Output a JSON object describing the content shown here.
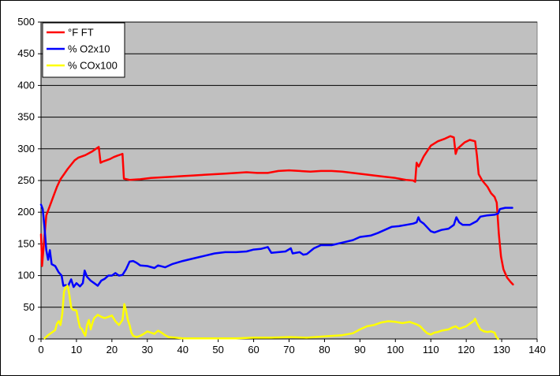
{
  "chart_data": {
    "type": "line",
    "title": "",
    "xlabel": "",
    "ylabel": "",
    "xlim": [
      0,
      140
    ],
    "ylim": [
      0,
      500
    ],
    "x_ticks": [
      0,
      10,
      20,
      30,
      40,
      50,
      60,
      70,
      80,
      90,
      100,
      110,
      120,
      130,
      140
    ],
    "y_ticks": [
      0,
      50,
      100,
      150,
      200,
      250,
      300,
      350,
      400,
      450,
      500
    ],
    "grid": "horizontal",
    "plot_background": "#c0c0c0",
    "legend_position": "top-left",
    "series": [
      {
        "name": "°F FT",
        "color": "#ff0000",
        "points": [
          [
            0,
            165
          ],
          [
            0.3,
            115
          ],
          [
            0.8,
            150
          ],
          [
            1.5,
            195
          ],
          [
            2.5,
            210
          ],
          [
            3.5,
            225
          ],
          [
            4.5,
            240
          ],
          [
            5.5,
            252
          ],
          [
            6.5,
            260
          ],
          [
            7.5,
            268
          ],
          [
            8.5,
            275
          ],
          [
            9.5,
            282
          ],
          [
            10.5,
            286
          ],
          [
            11.5,
            288
          ],
          [
            12.5,
            290
          ],
          [
            13.5,
            293
          ],
          [
            14.5,
            296
          ],
          [
            15.5,
            300
          ],
          [
            16.3,
            303
          ],
          [
            16.8,
            278
          ],
          [
            17.5,
            280
          ],
          [
            18.5,
            282
          ],
          [
            19.5,
            284
          ],
          [
            20.5,
            287
          ],
          [
            21.5,
            289
          ],
          [
            22.5,
            291
          ],
          [
            23,
            292
          ],
          [
            23.4,
            253
          ],
          [
            25,
            251
          ],
          [
            28,
            252
          ],
          [
            31,
            254
          ],
          [
            34,
            255
          ],
          [
            37,
            256
          ],
          [
            40,
            257
          ],
          [
            43,
            258
          ],
          [
            46,
            259
          ],
          [
            49,
            260
          ],
          [
            52,
            261
          ],
          [
            55,
            262
          ],
          [
            58,
            263
          ],
          [
            61,
            262
          ],
          [
            64,
            262
          ],
          [
            67,
            265
          ],
          [
            70,
            266
          ],
          [
            73,
            265
          ],
          [
            76,
            264
          ],
          [
            79,
            265
          ],
          [
            82,
            265
          ],
          [
            85,
            264
          ],
          [
            88,
            262
          ],
          [
            91,
            260
          ],
          [
            94,
            258
          ],
          [
            97,
            256
          ],
          [
            100,
            254
          ],
          [
            103,
            251
          ],
          [
            105,
            250
          ],
          [
            105.6,
            248
          ],
          [
            106,
            278
          ],
          [
            106.6,
            272
          ],
          [
            108,
            288
          ],
          [
            110,
            305
          ],
          [
            112,
            312
          ],
          [
            114,
            316
          ],
          [
            115.5,
            320
          ],
          [
            116.5,
            318
          ],
          [
            117,
            292
          ],
          [
            117.5,
            300
          ],
          [
            118.5,
            305
          ],
          [
            119.5,
            310
          ],
          [
            121,
            314
          ],
          [
            122.5,
            312
          ],
          [
            123,
            290
          ],
          [
            123.5,
            260
          ],
          [
            124.5,
            250
          ],
          [
            126,
            240
          ],
          [
            127,
            230
          ],
          [
            128,
            224
          ],
          [
            128.6,
            215
          ],
          [
            129.2,
            165
          ],
          [
            129.8,
            130
          ],
          [
            130.5,
            110
          ],
          [
            131.5,
            97
          ],
          [
            132.5,
            90
          ],
          [
            133.2,
            86
          ]
        ]
      },
      {
        "name": "% O2x10",
        "color": "#0000ff",
        "points": [
          [
            0,
            212
          ],
          [
            0.5,
            205
          ],
          [
            1,
            175
          ],
          [
            1.5,
            140
          ],
          [
            2,
            125
          ],
          [
            2.5,
            140
          ],
          [
            3,
            118
          ],
          [
            4,
            115
          ],
          [
            5,
            105
          ],
          [
            5.8,
            100
          ],
          [
            6.3,
            84
          ],
          [
            7,
            85
          ],
          [
            7.5,
            82
          ],
          [
            8.5,
            94
          ],
          [
            9.2,
            82
          ],
          [
            10,
            88
          ],
          [
            11,
            83
          ],
          [
            11.8,
            88
          ],
          [
            12.3,
            108
          ],
          [
            13,
            98
          ],
          [
            14,
            92
          ],
          [
            15,
            88
          ],
          [
            16,
            84
          ],
          [
            17,
            92
          ],
          [
            18,
            95
          ],
          [
            19,
            100
          ],
          [
            20,
            100
          ],
          [
            21,
            104
          ],
          [
            22,
            100
          ],
          [
            23,
            101
          ],
          [
            24,
            110
          ],
          [
            25,
            122
          ],
          [
            26,
            123
          ],
          [
            27,
            120
          ],
          [
            28,
            116
          ],
          [
            30,
            115
          ],
          [
            32,
            112
          ],
          [
            33,
            116
          ],
          [
            35,
            113
          ],
          [
            37,
            118
          ],
          [
            40,
            123
          ],
          [
            43,
            127
          ],
          [
            46,
            131
          ],
          [
            49,
            135
          ],
          [
            52,
            137
          ],
          [
            55,
            137
          ],
          [
            58,
            138
          ],
          [
            60,
            141
          ],
          [
            62,
            142
          ],
          [
            64,
            145
          ],
          [
            65,
            136
          ],
          [
            67,
            137
          ],
          [
            69,
            138
          ],
          [
            70.5,
            143
          ],
          [
            71,
            135
          ],
          [
            73,
            137
          ],
          [
            74,
            133
          ],
          [
            75,
            134
          ],
          [
            77,
            143
          ],
          [
            79,
            148
          ],
          [
            82,
            148
          ],
          [
            85,
            152
          ],
          [
            88,
            156
          ],
          [
            90,
            161
          ],
          [
            93,
            163
          ],
          [
            95,
            167
          ],
          [
            97,
            172
          ],
          [
            99,
            177
          ],
          [
            101,
            178
          ],
          [
            103,
            180
          ],
          [
            105,
            182
          ],
          [
            106,
            184
          ],
          [
            106.5,
            192
          ],
          [
            107,
            186
          ],
          [
            108,
            182
          ],
          [
            110,
            170
          ],
          [
            111,
            168
          ],
          [
            113,
            172
          ],
          [
            115,
            174
          ],
          [
            116.5,
            180
          ],
          [
            117.2,
            192
          ],
          [
            118,
            184
          ],
          [
            119,
            180
          ],
          [
            121,
            180
          ],
          [
            122,
            183
          ],
          [
            123,
            186
          ],
          [
            124,
            193
          ],
          [
            126,
            195
          ],
          [
            128,
            196
          ],
          [
            129,
            198
          ],
          [
            129.5,
            205
          ],
          [
            131,
            207
          ],
          [
            133,
            207
          ]
        ]
      },
      {
        "name": "% COx100",
        "color": "#ffff00",
        "points": [
          [
            1,
            1
          ],
          [
            2,
            6
          ],
          [
            3,
            10
          ],
          [
            4,
            14
          ],
          [
            4.5,
            24
          ],
          [
            5,
            28
          ],
          [
            5.5,
            22
          ],
          [
            6,
            40
          ],
          [
            6.5,
            75
          ],
          [
            7,
            82
          ],
          [
            7.5,
            84
          ],
          [
            8,
            70
          ],
          [
            8.5,
            50
          ],
          [
            9,
            46
          ],
          [
            10,
            45
          ],
          [
            10.5,
            30
          ],
          [
            11,
            18
          ],
          [
            11.5,
            16
          ],
          [
            12,
            10
          ],
          [
            12.5,
            5
          ],
          [
            13,
            22
          ],
          [
            13.5,
            30
          ],
          [
            14,
            15
          ],
          [
            14.5,
            25
          ],
          [
            15,
            33
          ],
          [
            16,
            38
          ],
          [
            17,
            35
          ],
          [
            18,
            33
          ],
          [
            19,
            35
          ],
          [
            20,
            37
          ],
          [
            21,
            28
          ],
          [
            22,
            22
          ],
          [
            23,
            30
          ],
          [
            23.5,
            55
          ],
          [
            24,
            45
          ],
          [
            24.5,
            30
          ],
          [
            25,
            22
          ],
          [
            25.5,
            10
          ],
          [
            26,
            5
          ],
          [
            27,
            3
          ],
          [
            28,
            5
          ],
          [
            29,
            8
          ],
          [
            30,
            12
          ],
          [
            31,
            10
          ],
          [
            32,
            8
          ],
          [
            33,
            13
          ],
          [
            34,
            10
          ],
          [
            35,
            6
          ],
          [
            36,
            3
          ],
          [
            38,
            2
          ],
          [
            40,
            1
          ],
          [
            45,
            1
          ],
          [
            50,
            1
          ],
          [
            55,
            1
          ],
          [
            60,
            2
          ],
          [
            65,
            2
          ],
          [
            70,
            3
          ],
          [
            75,
            2
          ],
          [
            80,
            4
          ],
          [
            85,
            6
          ],
          [
            88,
            9
          ],
          [
            90,
            15
          ],
          [
            92,
            20
          ],
          [
            94,
            22
          ],
          [
            96,
            26
          ],
          [
            98,
            28
          ],
          [
            100,
            27
          ],
          [
            102,
            25
          ],
          [
            104,
            27
          ],
          [
            106,
            23
          ],
          [
            107,
            20
          ],
          [
            108,
            14
          ],
          [
            109,
            9
          ],
          [
            110,
            7
          ],
          [
            111,
            10
          ],
          [
            112,
            11
          ],
          [
            113,
            13
          ],
          [
            115,
            15
          ],
          [
            116,
            18
          ],
          [
            117,
            20
          ],
          [
            118,
            16
          ],
          [
            119,
            18
          ],
          [
            120,
            20
          ],
          [
            121,
            24
          ],
          [
            122,
            28
          ],
          [
            122.5,
            32
          ],
          [
            123,
            25
          ],
          [
            124,
            15
          ],
          [
            125,
            12
          ],
          [
            126,
            11
          ],
          [
            127,
            12
          ],
          [
            128,
            10
          ],
          [
            128.5,
            3
          ],
          [
            129,
            0
          ]
        ]
      }
    ]
  }
}
